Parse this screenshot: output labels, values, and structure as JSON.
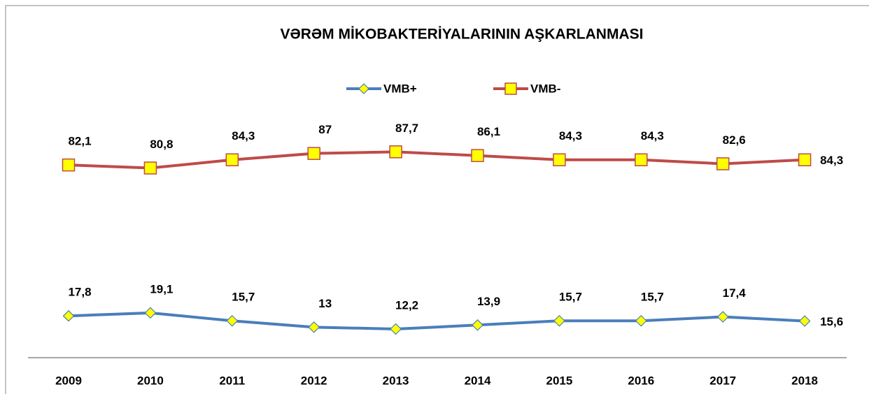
{
  "chart_data": {
    "type": "line",
    "title": "VƏRƏM MİKOBAKTERİYALARININ AŞKARLANMASI",
    "categories": [
      "2009",
      "2010",
      "2011",
      "2012",
      "2013",
      "2014",
      "2015",
      "2016",
      "2017",
      "2018"
    ],
    "ylim": [
      0,
      100
    ],
    "series": [
      {
        "name": "VMB+",
        "color": "#4a7ebb",
        "marker": "diamond",
        "values": [
          17.8,
          19.1,
          15.7,
          13,
          12.2,
          13.9,
          15.7,
          15.7,
          17.4,
          15.6
        ],
        "value_labels": [
          "17,8",
          "19,1",
          "15,7",
          "13",
          "12,2",
          "13,9",
          "15,7",
          "15,7",
          "17,4",
          "15,6"
        ]
      },
      {
        "name": "VMB-",
        "color": "#be4b48",
        "marker": "square",
        "values": [
          82.1,
          80.8,
          84.3,
          87,
          87.7,
          86.1,
          84.3,
          84.3,
          82.6,
          84.3
        ],
        "value_labels": [
          "82,1",
          "80,8",
          "84,3",
          "87",
          "87,7",
          "86,1",
          "84,3",
          "84,3",
          "82,6",
          "84,3"
        ]
      }
    ]
  }
}
